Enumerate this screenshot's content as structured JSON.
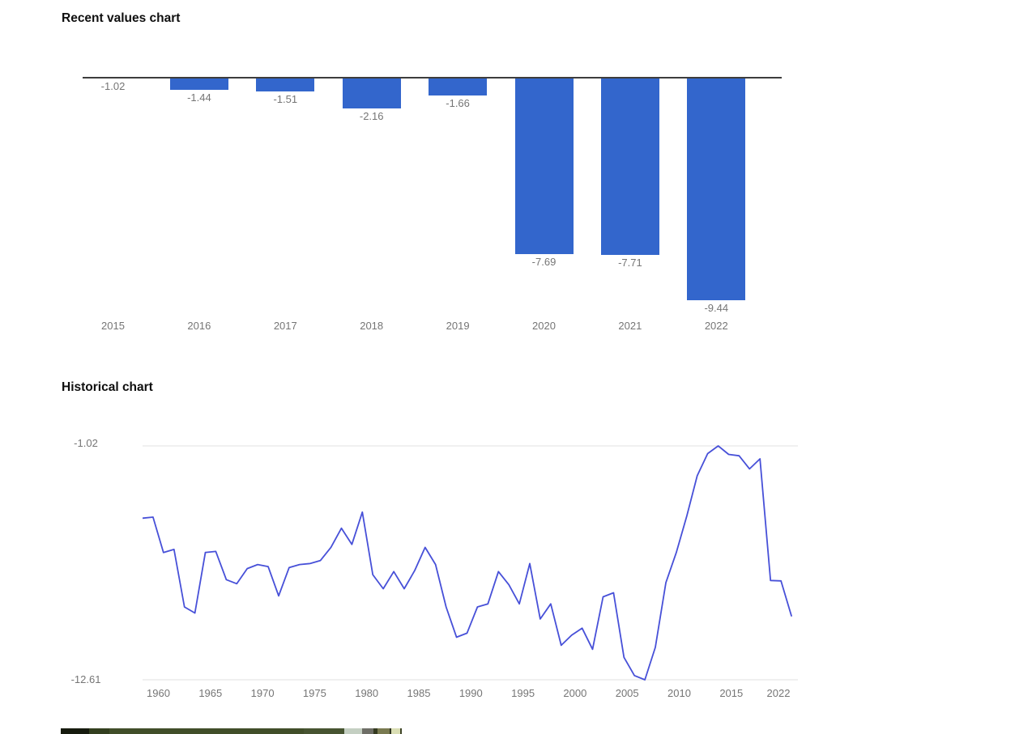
{
  "chart_data": [
    {
      "type": "bar",
      "title": "Recent values chart",
      "bar_color": "#3366cc",
      "categories": [
        "2015",
        "2016",
        "2017",
        "2018",
        "2019",
        "2020",
        "2021",
        "2022"
      ],
      "values": [
        -1.02,
        -1.44,
        -1.51,
        -2.16,
        -1.66,
        -7.69,
        -7.71,
        -9.44
      ],
      "value_labels": [
        "-1.02",
        "-1.44",
        "-1.51",
        "-2.16",
        "-1.66",
        "-7.69",
        "-7.71",
        "-9.44"
      ],
      "baseline_value": -1.02,
      "ylim": [
        -9.44,
        -1.02
      ],
      "grid": "off",
      "legend": "none"
    },
    {
      "type": "line",
      "title": "Historical chart",
      "line_color": "#4750d8",
      "grid_color": "#e7e7e7",
      "start_year": 1960,
      "end_year": 2022,
      "x_tick_labels": [
        "1960",
        "1965",
        "1970",
        "1975",
        "1980",
        "1985",
        "1990",
        "1995",
        "2000",
        "2005",
        "2010",
        "2015",
        "2022"
      ],
      "y_axis": {
        "max": -1.02,
        "min": -12.61,
        "max_label": "-1.02",
        "min_label": "-12.61"
      },
      "values": [
        -4.6,
        -4.55,
        -6.3,
        -6.15,
        -9.0,
        -9.3,
        -6.3,
        -6.25,
        -7.65,
        -7.85,
        -7.1,
        -6.9,
        -7.0,
        -8.45,
        -7.05,
        -6.9,
        -6.85,
        -6.7,
        -6.05,
        -5.1,
        -5.9,
        -4.3,
        -7.4,
        -8.1,
        -7.25,
        -8.1,
        -7.2,
        -6.05,
        -6.9,
        -9.0,
        -10.5,
        -10.3,
        -9.0,
        -8.85,
        -7.25,
        -7.9,
        -8.85,
        -6.85,
        -9.6,
        -8.85,
        -10.9,
        -10.4,
        -10.05,
        -11.1,
        -8.5,
        -8.3,
        -11.5,
        -12.4,
        -12.61,
        -11.0,
        -7.8,
        -6.3,
        -4.5,
        -2.5,
        -1.4,
        -1.02,
        -1.44,
        -1.51,
        -2.16,
        -1.66,
        -7.69,
        -7.71,
        -9.44
      ],
      "legend": "none"
    }
  ],
  "bottom_strip": {
    "description": "partially visible top edge of an image cropped at bottom of page",
    "segments": [
      {
        "color": "#161b0e",
        "from": 0,
        "to": 35
      },
      {
        "color": "#333f1f",
        "from": 35,
        "to": 60
      },
      {
        "color": "#414e29",
        "from": 60,
        "to": 300
      },
      {
        "color": "#475431",
        "from": 300,
        "to": 350
      },
      {
        "color": "#c4cfc2",
        "from": 350,
        "to": 372
      },
      {
        "color": "#6e6e66",
        "from": 372,
        "to": 386
      },
      {
        "color": "#343a20",
        "from": 386,
        "to": 391
      },
      {
        "color": "#797a50",
        "from": 391,
        "to": 406
      },
      {
        "color": "#2e3220",
        "from": 406,
        "to": 408
      },
      {
        "color": "#dadeb4",
        "from": 408,
        "to": 419
      },
      {
        "color": "#3e4426",
        "from": 419,
        "to": 421
      }
    ]
  }
}
